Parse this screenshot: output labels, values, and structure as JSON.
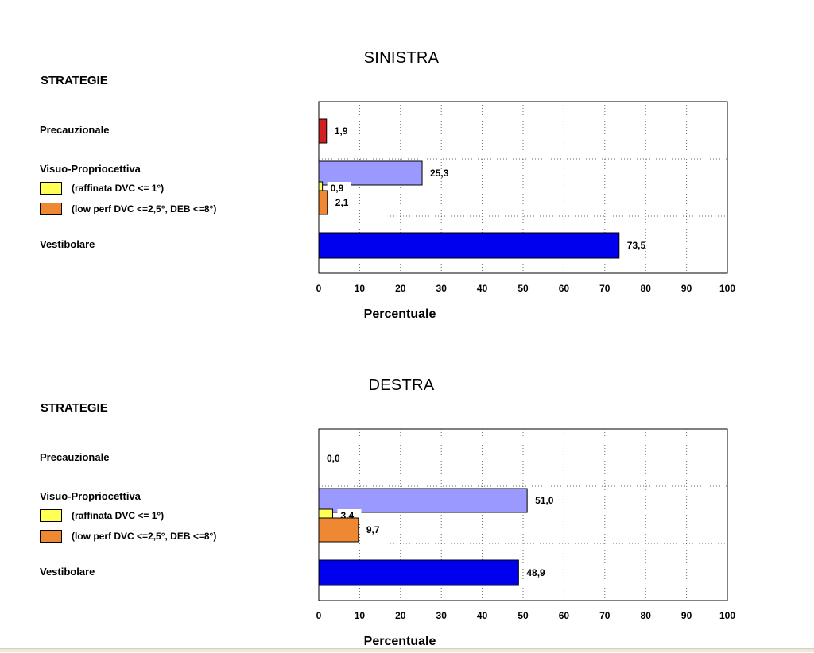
{
  "chart_data": [
    {
      "type": "bar",
      "orientation": "horizontal",
      "title": "SINISTRA",
      "legend_title": "STRATEGIE",
      "xlabel": "Percentuale",
      "xlim": [
        0,
        100
      ],
      "xticks": [
        "0",
        "10",
        "20",
        "30",
        "40",
        "50",
        "60",
        "70",
        "80",
        "90",
        "100"
      ],
      "grid": "vertical-dotted",
      "categories": [
        "Precauzionale",
        "Visuo-Propriocettiva",
        "(raffinata DVC <= 1°)",
        "(low perf DVC <=2,5°, DEB <=8°)",
        "Vestibolare"
      ],
      "values": [
        1.9,
        25.3,
        0.9,
        2.1,
        73.5
      ],
      "value_labels": [
        "1,9",
        "25,3",
        "0,9",
        "2,1",
        "73,5"
      ],
      "colors": [
        "#d02020",
        "#9999ff",
        "#ffff55",
        "#ee8833",
        "#0000ee"
      ]
    },
    {
      "type": "bar",
      "orientation": "horizontal",
      "title": "DESTRA",
      "legend_title": "STRATEGIE",
      "xlabel": "Percentuale",
      "xlim": [
        0,
        100
      ],
      "xticks": [
        "0",
        "10",
        "20",
        "30",
        "40",
        "50",
        "60",
        "70",
        "80",
        "90",
        "100"
      ],
      "grid": "vertical-dotted",
      "categories": [
        "Precauzionale",
        "Visuo-Propriocettiva",
        "(raffinata DVC <= 1°)",
        "(low perf DVC <=2,5°, DEB <=8°)",
        "Vestibolare"
      ],
      "values": [
        0.0,
        51.0,
        3.4,
        9.7,
        48.9
      ],
      "value_labels": [
        "0,0",
        "51,0",
        "3,4",
        "9,7",
        "48,9"
      ],
      "colors": [
        "#d02020",
        "#9999ff",
        "#ffff55",
        "#ee8833",
        "#0000ee"
      ]
    }
  ]
}
